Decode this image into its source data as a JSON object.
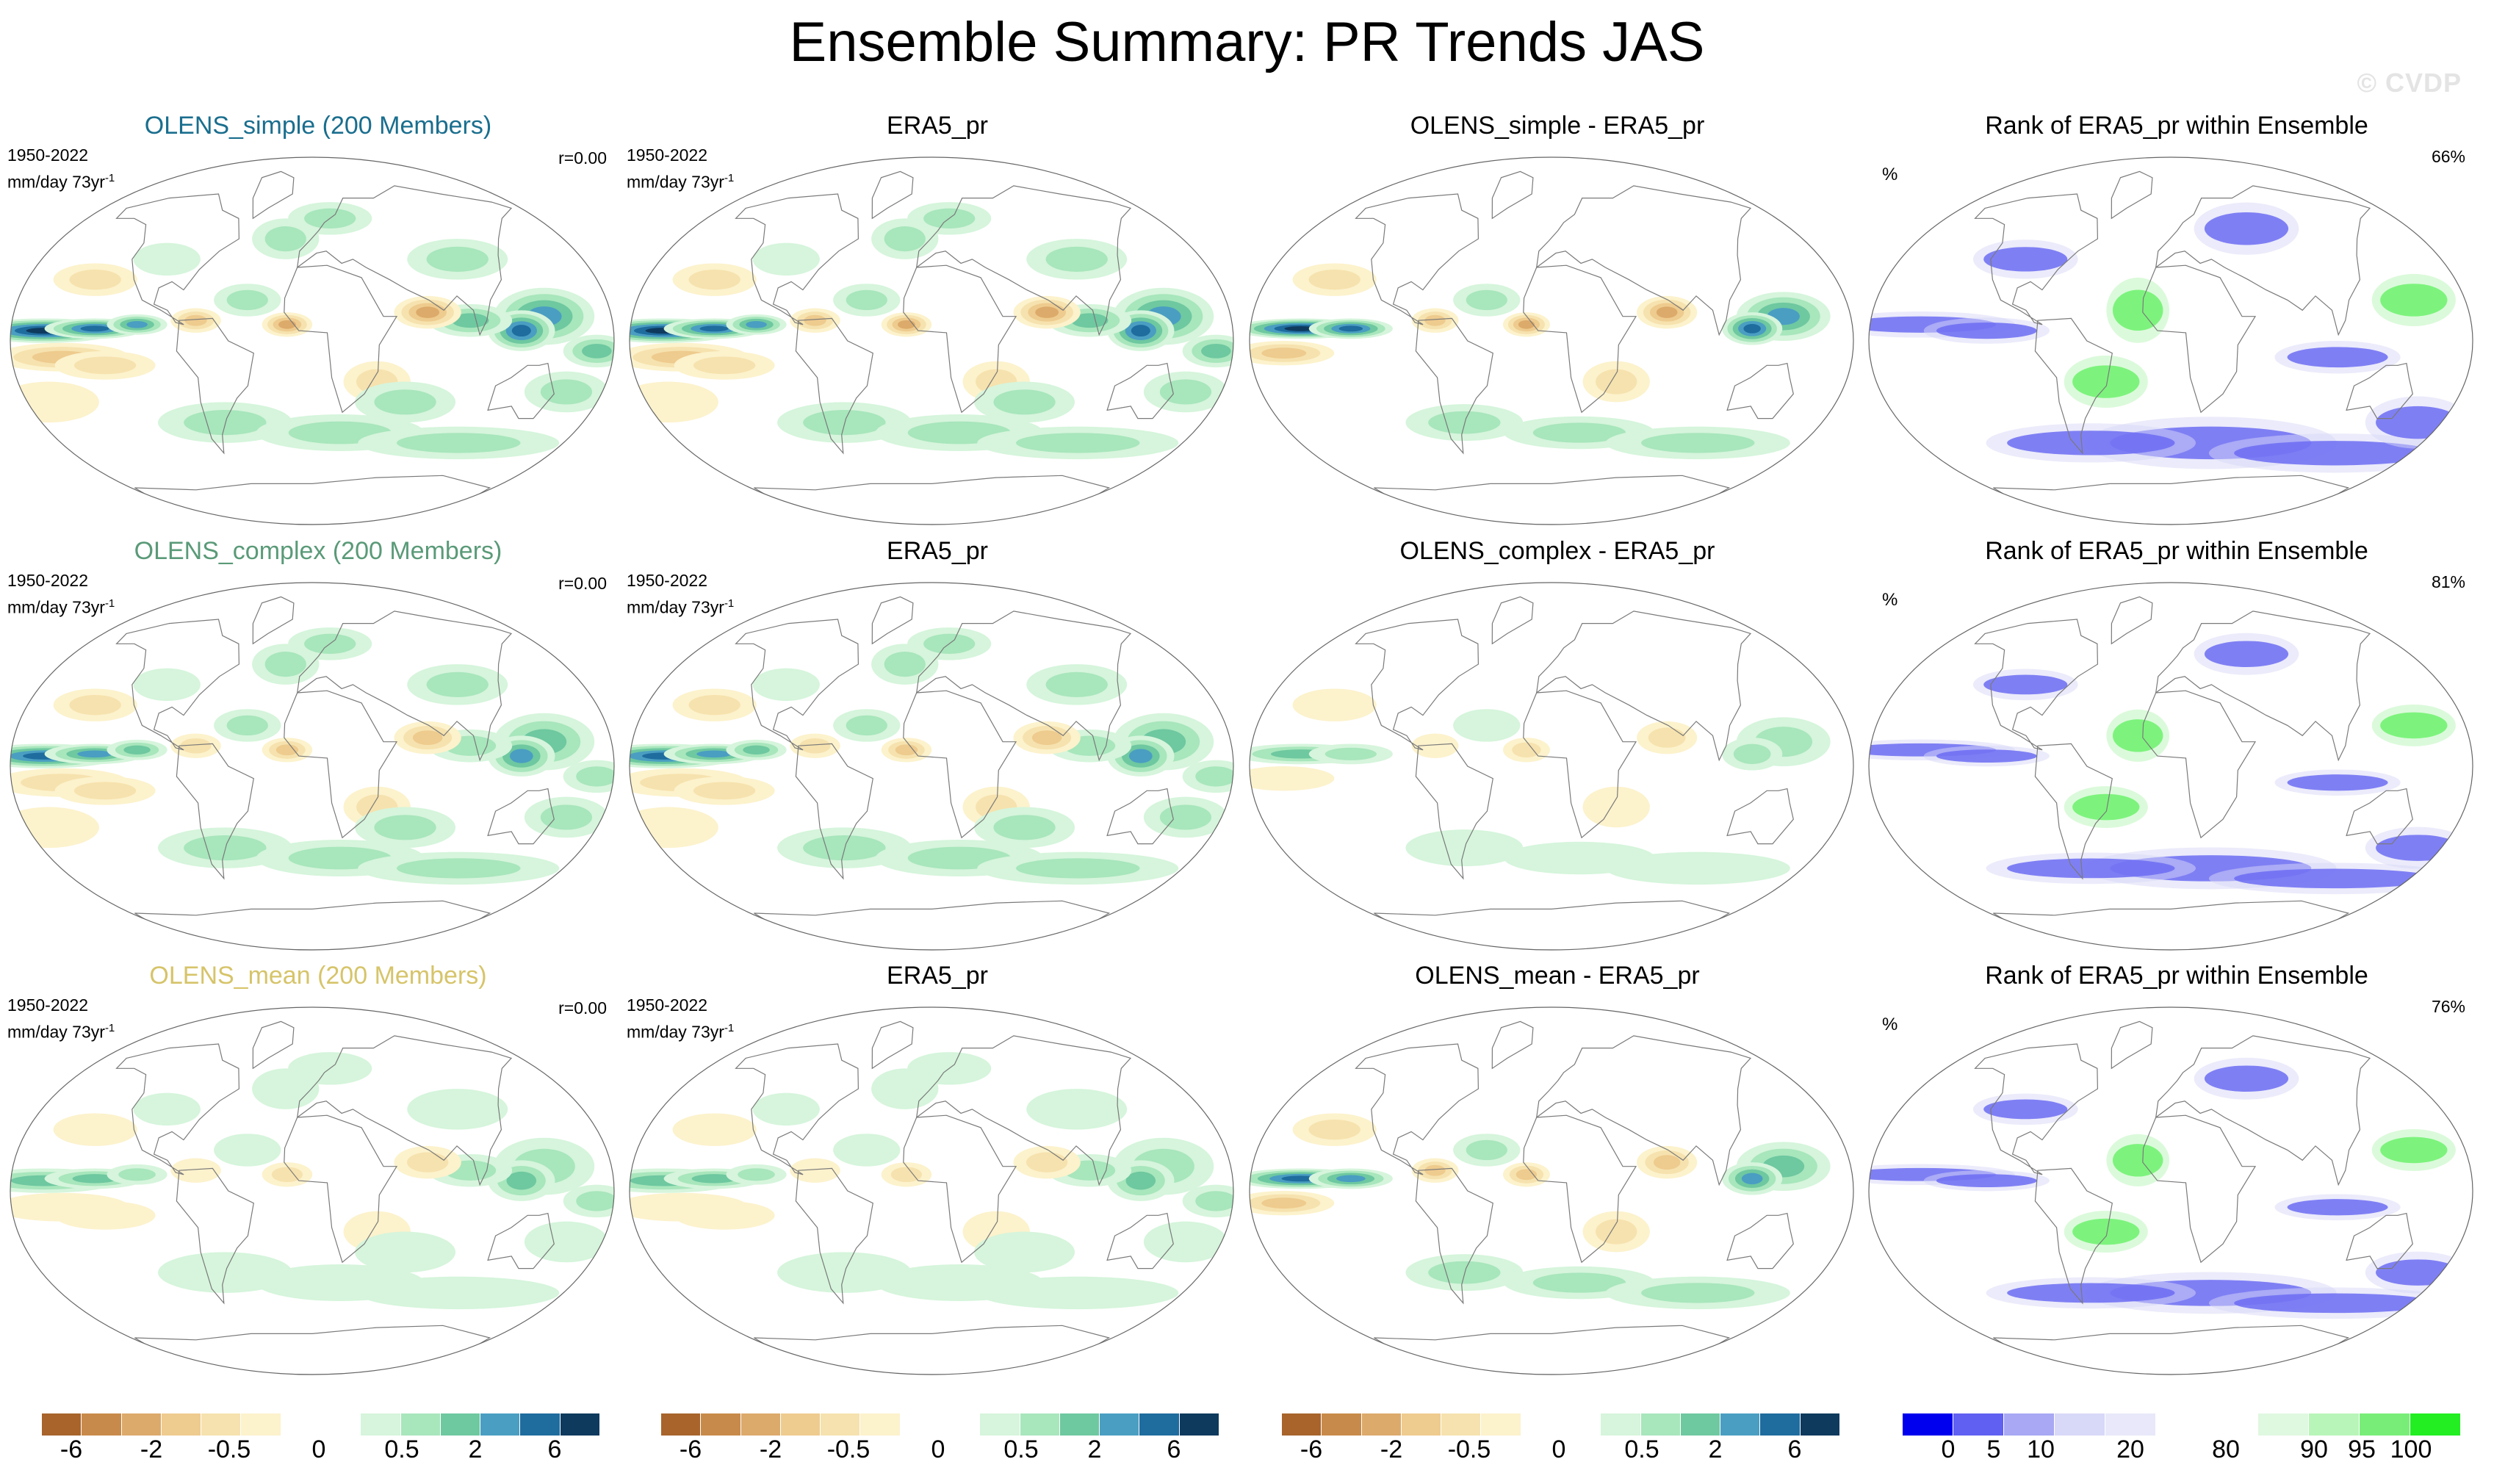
{
  "title": "Ensemble Summary: PR Trends JAS",
  "watermark": "© CVDP",
  "rows": [
    {
      "ensemble": {
        "title": "OLENS_simple (200 Members)",
        "title_color": "#1a6e8e",
        "period": "1950-2022",
        "units_base": "mm/day 73yr",
        "units_exp": "-1",
        "r": "r=0.00"
      },
      "obs": {
        "title": "ERA5_pr",
        "period": "1950-2022",
        "units_base": "mm/day 73yr",
        "units_exp": "-1"
      },
      "diff": {
        "title": "OLENS_simple - ERA5_pr"
      },
      "rank": {
        "title": "Rank of ERA5_pr within Ensemble",
        "unit": "%",
        "pct": "66%"
      }
    },
    {
      "ensemble": {
        "title": "OLENS_complex (200 Members)",
        "title_color": "#5a9a78",
        "period": "1950-2022",
        "units_base": "mm/day 73yr",
        "units_exp": "-1",
        "r": "r=0.00"
      },
      "obs": {
        "title": "ERA5_pr",
        "period": "1950-2022",
        "units_base": "mm/day 73yr",
        "units_exp": "-1"
      },
      "diff": {
        "title": "OLENS_complex - ERA5_pr"
      },
      "rank": {
        "title": "Rank of ERA5_pr within Ensemble",
        "unit": "%",
        "pct": "81%"
      }
    },
    {
      "ensemble": {
        "title": "OLENS_mean (200 Members)",
        "title_color": "#d6c46a",
        "period": "1950-2022",
        "units_base": "mm/day 73yr",
        "units_exp": "-1",
        "r": "r=0.00"
      },
      "obs": {
        "title": "ERA5_pr",
        "period": "1950-2022",
        "units_base": "mm/day 73yr",
        "units_exp": "-1"
      },
      "diff": {
        "title": "OLENS_mean - ERA5_pr"
      },
      "rank": {
        "title": "Rank of ERA5_pr within Ensemble",
        "unit": "%",
        "pct": "76%"
      }
    }
  ],
  "colorbars": {
    "trend": {
      "colors": [
        "#a8642a",
        "#c88a4a",
        "#dcaa6a",
        "#eecb8e",
        "#f6e2ae",
        "#fcf2cc",
        "#ffffff",
        "#ffffff",
        "#d6f5dc",
        "#a8e6bc",
        "#6ec8a0",
        "#4a9ec2",
        "#1f6c9e",
        "#0e3a5e"
      ],
      "labels": [
        "-6",
        "-2",
        "-0.5",
        "0",
        "0.5",
        "2",
        "6"
      ]
    },
    "rank": {
      "colors": [
        "#0000ee",
        "#6060f2",
        "#a8a8f4",
        "#d8d8f8",
        "#e8e8fa",
        "#ffffff",
        "#ffffff",
        "#dff8e0",
        "#b8f5b8",
        "#78ee78",
        "#22ee22"
      ],
      "labels": [
        "0",
        "5",
        "10",
        "20",
        "80",
        "90",
        "95",
        "100"
      ]
    }
  }
}
